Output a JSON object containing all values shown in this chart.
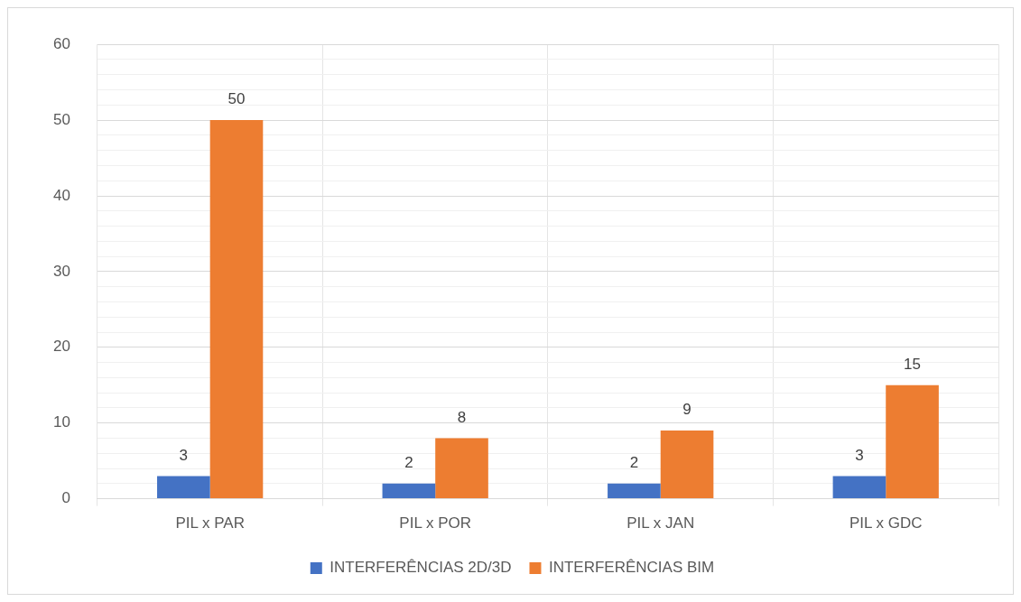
{
  "chart_data": {
    "type": "bar",
    "categories": [
      "PIL x PAR",
      "PIL x POR",
      "PIL x JAN",
      "PIL x GDC"
    ],
    "series": [
      {
        "name": "INTERFERÊNCIAS 2D/3D",
        "color": "#4472c4",
        "values": [
          3,
          2,
          2,
          3
        ]
      },
      {
        "name": "INTERFERÊNCIAS BIM",
        "color": "#ed7d31",
        "values": [
          50,
          8,
          9,
          15
        ]
      }
    ],
    "ylim": [
      0,
      60
    ],
    "yticks": [
      0,
      {
        "value": 2,
        "label": null
      },
      {
        "value": 4,
        "label": null
      },
      {
        "value": 6,
        "label": null
      },
      {
        "value": 8,
        "label": null
      },
      10,
      {
        "value": 12,
        "label": null
      },
      {
        "value": 14,
        "label": null
      },
      {
        "value": 16,
        "label": null
      },
      {
        "value": 18,
        "label": null
      },
      20,
      {
        "value": 22,
        "label": null
      },
      {
        "value": 24,
        "label": null
      },
      {
        "value": 26,
        "label": null
      },
      {
        "value": 28,
        "label": null
      },
      30,
      {
        "value": 32,
        "label": null
      },
      {
        "value": 34,
        "label": null
      },
      {
        "value": 36,
        "label": null
      },
      {
        "value": 38,
        "label": null
      },
      40,
      {
        "value": 42,
        "label": null
      },
      {
        "value": 44,
        "label": null
      },
      {
        "value": 46,
        "label": null
      },
      {
        "value": 48,
        "label": null
      },
      50,
      {
        "value": 52,
        "label": null
      },
      {
        "value": 54,
        "label": null
      },
      {
        "value": 56,
        "label": null
      },
      {
        "value": 58,
        "label": null
      },
      60
    ],
    "grid": true,
    "legend": "bottom",
    "data_labels": true
  }
}
